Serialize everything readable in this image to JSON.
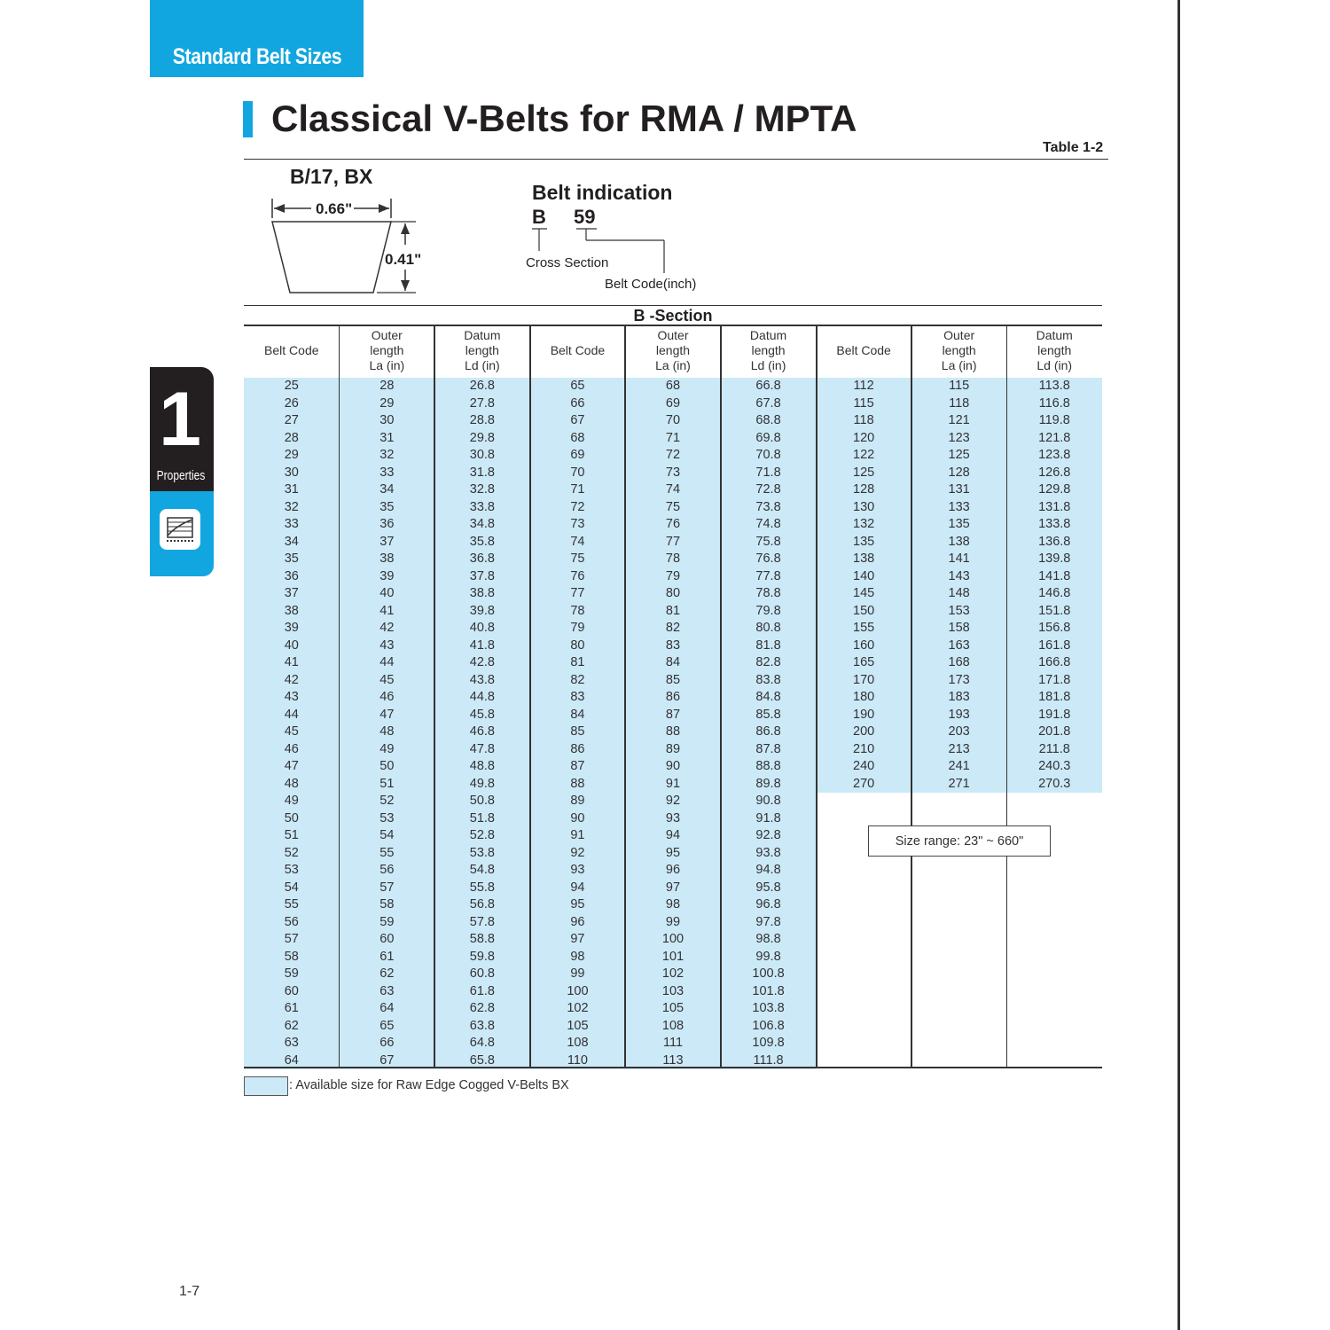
{
  "header_tab": "Standard Belt Sizes",
  "title": "Classical V-Belts for RMA / MPTA",
  "table_number": "Table 1-2",
  "chapter": {
    "number": "1",
    "label": "Properties",
    "icon": "chart-icon"
  },
  "diagram": {
    "section_label": "B/17, BX",
    "width": "0.66\"",
    "height": "0.41\""
  },
  "belt_indication": {
    "title": "Belt indication",
    "letter": "B",
    "number": "59",
    "cross_section_label": "Cross Section",
    "belt_code_label": "Belt Code(inch)"
  },
  "section_title": "B -Section",
  "columns": [
    "Belt Code",
    "Outer\nlength\nLa (in)",
    "Datum\nlength\nLd (in)"
  ],
  "groups": [
    [
      [
        "25",
        "28",
        "26.8"
      ],
      [
        "26",
        "29",
        "27.8"
      ],
      [
        "27",
        "30",
        "28.8"
      ],
      [
        "28",
        "31",
        "29.8"
      ],
      [
        "29",
        "32",
        "30.8"
      ],
      [
        "30",
        "33",
        "31.8"
      ],
      [
        "31",
        "34",
        "32.8"
      ],
      [
        "32",
        "35",
        "33.8"
      ],
      [
        "33",
        "36",
        "34.8"
      ],
      [
        "34",
        "37",
        "35.8"
      ],
      [
        "35",
        "38",
        "36.8"
      ],
      [
        "36",
        "39",
        "37.8"
      ],
      [
        "37",
        "40",
        "38.8"
      ],
      [
        "38",
        "41",
        "39.8"
      ],
      [
        "39",
        "42",
        "40.8"
      ],
      [
        "40",
        "43",
        "41.8"
      ],
      [
        "41",
        "44",
        "42.8"
      ],
      [
        "42",
        "45",
        "43.8"
      ],
      [
        "43",
        "46",
        "44.8"
      ],
      [
        "44",
        "47",
        "45.8"
      ],
      [
        "45",
        "48",
        "46.8"
      ],
      [
        "46",
        "49",
        "47.8"
      ],
      [
        "47",
        "50",
        "48.8"
      ],
      [
        "48",
        "51",
        "49.8"
      ],
      [
        "49",
        "52",
        "50.8"
      ],
      [
        "50",
        "53",
        "51.8"
      ],
      [
        "51",
        "54",
        "52.8"
      ],
      [
        "52",
        "55",
        "53.8"
      ],
      [
        "53",
        "56",
        "54.8"
      ],
      [
        "54",
        "57",
        "55.8"
      ],
      [
        "55",
        "58",
        "56.8"
      ],
      [
        "56",
        "59",
        "57.8"
      ],
      [
        "57",
        "60",
        "58.8"
      ],
      [
        "58",
        "61",
        "59.8"
      ],
      [
        "59",
        "62",
        "60.8"
      ],
      [
        "60",
        "63",
        "61.8"
      ],
      [
        "61",
        "64",
        "62.8"
      ],
      [
        "62",
        "65",
        "63.8"
      ],
      [
        "63",
        "66",
        "64.8"
      ],
      [
        "64",
        "67",
        "65.8"
      ]
    ],
    [
      [
        "65",
        "68",
        "66.8"
      ],
      [
        "66",
        "69",
        "67.8"
      ],
      [
        "67",
        "70",
        "68.8"
      ],
      [
        "68",
        "71",
        "69.8"
      ],
      [
        "69",
        "72",
        "70.8"
      ],
      [
        "70",
        "73",
        "71.8"
      ],
      [
        "71",
        "74",
        "72.8"
      ],
      [
        "72",
        "75",
        "73.8"
      ],
      [
        "73",
        "76",
        "74.8"
      ],
      [
        "74",
        "77",
        "75.8"
      ],
      [
        "75",
        "78",
        "76.8"
      ],
      [
        "76",
        "79",
        "77.8"
      ],
      [
        "77",
        "80",
        "78.8"
      ],
      [
        "78",
        "81",
        "79.8"
      ],
      [
        "79",
        "82",
        "80.8"
      ],
      [
        "80",
        "83",
        "81.8"
      ],
      [
        "81",
        "84",
        "82.8"
      ],
      [
        "82",
        "85",
        "83.8"
      ],
      [
        "83",
        "86",
        "84.8"
      ],
      [
        "84",
        "87",
        "85.8"
      ],
      [
        "85",
        "88",
        "86.8"
      ],
      [
        "86",
        "89",
        "87.8"
      ],
      [
        "87",
        "90",
        "88.8"
      ],
      [
        "88",
        "91",
        "89.8"
      ],
      [
        "89",
        "92",
        "90.8"
      ],
      [
        "90",
        "93",
        "91.8"
      ],
      [
        "91",
        "94",
        "92.8"
      ],
      [
        "92",
        "95",
        "93.8"
      ],
      [
        "93",
        "96",
        "94.8"
      ],
      [
        "94",
        "97",
        "95.8"
      ],
      [
        "95",
        "98",
        "96.8"
      ],
      [
        "96",
        "99",
        "97.8"
      ],
      [
        "97",
        "100",
        "98.8"
      ],
      [
        "98",
        "101",
        "99.8"
      ],
      [
        "99",
        "102",
        "100.8"
      ],
      [
        "100",
        "103",
        "101.8"
      ],
      [
        "102",
        "105",
        "103.8"
      ],
      [
        "105",
        "108",
        "106.8"
      ],
      [
        "108",
        "111",
        "109.8"
      ],
      [
        "110",
        "113",
        "111.8"
      ]
    ],
    [
      [
        "112",
        "115",
        "113.8"
      ],
      [
        "115",
        "118",
        "116.8"
      ],
      [
        "118",
        "121",
        "119.8"
      ],
      [
        "120",
        "123",
        "121.8"
      ],
      [
        "122",
        "125",
        "123.8"
      ],
      [
        "125",
        "128",
        "126.8"
      ],
      [
        "128",
        "131",
        "129.8"
      ],
      [
        "130",
        "133",
        "131.8"
      ],
      [
        "132",
        "135",
        "133.8"
      ],
      [
        "135",
        "138",
        "136.8"
      ],
      [
        "138",
        "141",
        "139.8"
      ],
      [
        "140",
        "143",
        "141.8"
      ],
      [
        "145",
        "148",
        "146.8"
      ],
      [
        "150",
        "153",
        "151.8"
      ],
      [
        "155",
        "158",
        "156.8"
      ],
      [
        "160",
        "163",
        "161.8"
      ],
      [
        "165",
        "168",
        "166.8"
      ],
      [
        "170",
        "173",
        "171.8"
      ],
      [
        "180",
        "183",
        "181.8"
      ],
      [
        "190",
        "193",
        "191.8"
      ],
      [
        "200",
        "203",
        "201.8"
      ],
      [
        "210",
        "213",
        "211.8"
      ],
      [
        "240",
        "241",
        "240.3"
      ],
      [
        "270",
        "271",
        "270.3"
      ]
    ]
  ],
  "size_range": "Size range: 23\" ~ 660\"",
  "legend": ": Available size for Raw Edge Cogged V-Belts BX",
  "page_number": "1-7",
  "colors": {
    "accent": "#12a6e0",
    "available_fill": "#cce9f8",
    "chapter_tab": "#231f20"
  }
}
